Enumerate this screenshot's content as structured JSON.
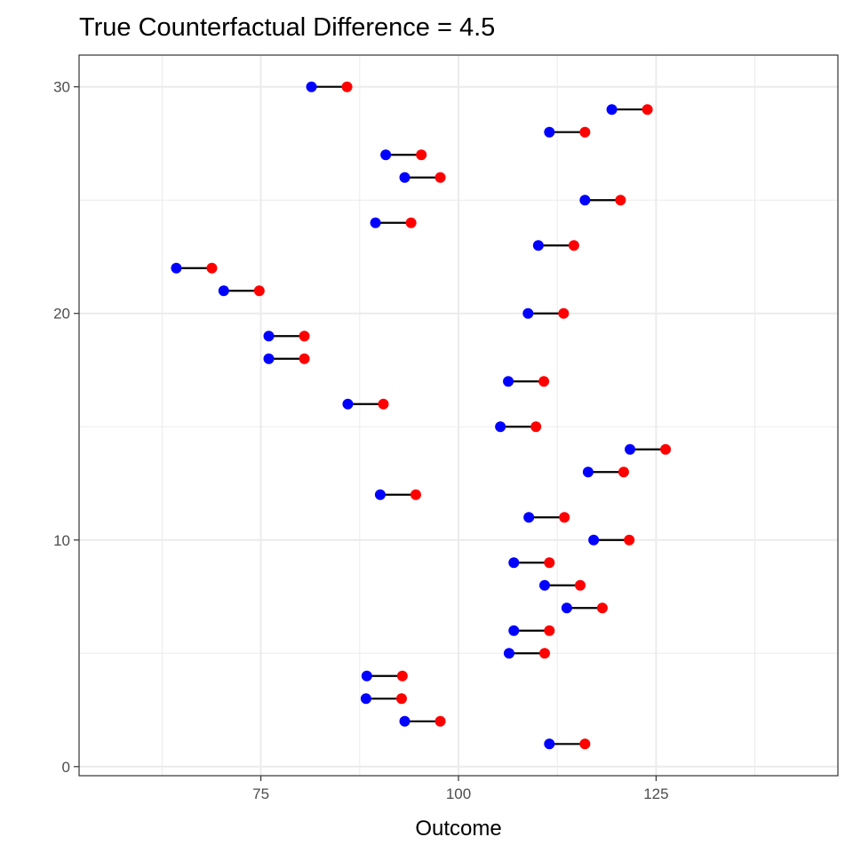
{
  "chart_data": {
    "type": "dumbbell",
    "title": "True Counterfactual Difference = 4.5",
    "xlabel": "Outcome",
    "ylabel": "",
    "xlim": [
      52,
      148
    ],
    "ylim": [
      -0.4,
      31.4
    ],
    "x_ticks": [
      75,
      100,
      125
    ],
    "x_minor_ticks": [
      62.5,
      87.5,
      112.5,
      137.5
    ],
    "y_ticks": [
      0,
      10,
      20,
      30
    ],
    "y_minor_ticks": [
      5,
      15,
      25
    ],
    "grid": true,
    "colors": {
      "start": "#0000ff",
      "end": "#ff0000",
      "segment": "#000000"
    },
    "points": [
      {
        "y": 1,
        "x0": 111.5,
        "x1": 116.0
      },
      {
        "y": 2,
        "x0": 93.2,
        "x1": 97.7
      },
      {
        "y": 3,
        "x0": 88.3,
        "x1": 92.8
      },
      {
        "y": 4,
        "x0": 88.4,
        "x1": 92.9
      },
      {
        "y": 5,
        "x0": 106.4,
        "x1": 110.9
      },
      {
        "y": 6,
        "x0": 107.0,
        "x1": 111.5
      },
      {
        "y": 7,
        "x0": 113.7,
        "x1": 118.2
      },
      {
        "y": 8,
        "x0": 110.9,
        "x1": 115.4
      },
      {
        "y": 9,
        "x0": 107.0,
        "x1": 111.5
      },
      {
        "y": 10,
        "x0": 117.1,
        "x1": 121.6
      },
      {
        "y": 11,
        "x0": 108.9,
        "x1": 113.4
      },
      {
        "y": 12,
        "x0": 90.1,
        "x1": 94.6
      },
      {
        "y": 13,
        "x0": 116.4,
        "x1": 120.9
      },
      {
        "y": 14,
        "x0": 121.7,
        "x1": 126.2
      },
      {
        "y": 15,
        "x0": 105.3,
        "x1": 109.8
      },
      {
        "y": 16,
        "x0": 86.0,
        "x1": 90.5
      },
      {
        "y": 17,
        "x0": 106.3,
        "x1": 110.8
      },
      {
        "y": 18,
        "x0": 76.0,
        "x1": 80.5
      },
      {
        "y": 19,
        "x0": 76.0,
        "x1": 80.5
      },
      {
        "y": 20,
        "x0": 108.8,
        "x1": 113.3
      },
      {
        "y": 21,
        "x0": 70.3,
        "x1": 74.8
      },
      {
        "y": 22,
        "x0": 64.3,
        "x1": 68.8
      },
      {
        "y": 23,
        "x0": 110.1,
        "x1": 114.6
      },
      {
        "y": 24,
        "x0": 89.5,
        "x1": 94.0
      },
      {
        "y": 25,
        "x0": 116.0,
        "x1": 120.5
      },
      {
        "y": 26,
        "x0": 93.2,
        "x1": 97.7
      },
      {
        "y": 27,
        "x0": 90.8,
        "x1": 95.3
      },
      {
        "y": 28,
        "x0": 111.5,
        "x1": 116.0
      },
      {
        "y": 29,
        "x0": 119.4,
        "x1": 123.9
      },
      {
        "y": 30,
        "x0": 81.4,
        "x1": 85.9
      }
    ]
  }
}
